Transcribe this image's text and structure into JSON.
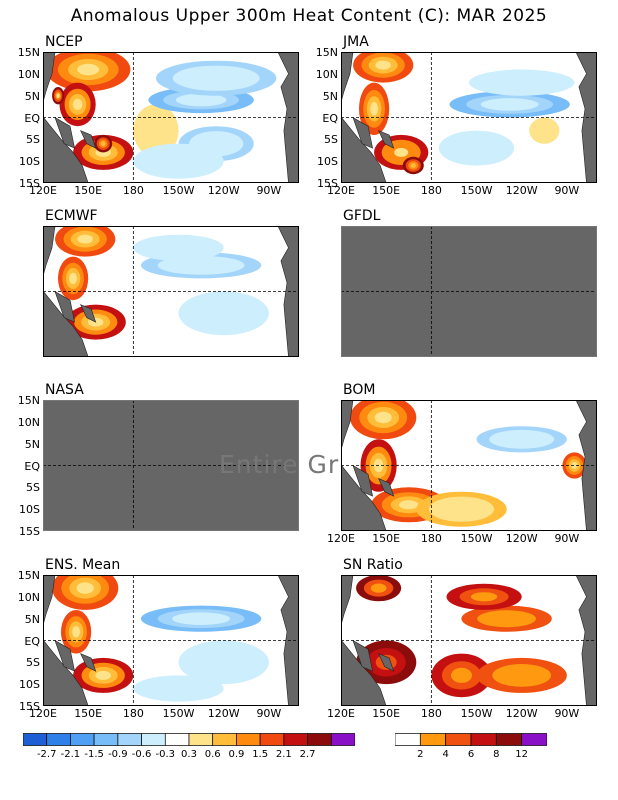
{
  "title": "Anomalous Upper 300m Heat Content (C): MAR 2025",
  "y_ticks": [
    "15N",
    "10N",
    "5N",
    "EQ",
    "5S",
    "10S",
    "15S"
  ],
  "x_ticks": [
    "120E",
    "150E",
    "180",
    "150W",
    "120W",
    "90W"
  ],
  "panels": [
    {
      "id": "ncep",
      "label": "NCEP",
      "status": "data"
    },
    {
      "id": "jma",
      "label": "JMA",
      "status": "data"
    },
    {
      "id": "ecmwf",
      "label": "ECMWF",
      "status": "data"
    },
    {
      "id": "gfdl",
      "label": "GFDL",
      "status": "missing"
    },
    {
      "id": "nasa",
      "label": "NASA",
      "status": "missing",
      "overlay_text": "Entire Gr"
    },
    {
      "id": "bom",
      "label": "BOM",
      "status": "data"
    },
    {
      "id": "ens",
      "label": "ENS. Mean",
      "status": "data"
    },
    {
      "id": "sn",
      "label": "SN Ratio",
      "status": "data"
    }
  ],
  "colorbar_anomaly": {
    "colors": [
      "#1e5fd6",
      "#2e7fe8",
      "#4f9ff5",
      "#78bdf7",
      "#a3d5fb",
      "#cdeefd",
      "#ffffff",
      "#ffe38a",
      "#ffbd3a",
      "#ff8a10",
      "#f04a10",
      "#c41010",
      "#8c0c0c",
      "#8a10c8"
    ],
    "labels": [
      "-2.7",
      "-2.1",
      "-1.5",
      "-0.9",
      "-0.6",
      "-0.3",
      "0.3",
      "0.6",
      "0.9",
      "1.5",
      "2.1",
      "2.7"
    ]
  },
  "colorbar_sn": {
    "colors": [
      "#ffffff",
      "#ff9a10",
      "#f05010",
      "#c41010",
      "#8c0c0c",
      "#8a10c8"
    ],
    "labels": [
      "2",
      "4",
      "6",
      "8",
      "12"
    ]
  },
  "chart_data": {
    "type": "heatmap",
    "title": "Anomalous Upper 300m Heat Content (C): MAR 2025",
    "x_axis": {
      "ticks": [
        "120E",
        "150E",
        "180",
        "150W",
        "120W",
        "90W"
      ],
      "range_deg_east": [
        120,
        290
      ]
    },
    "y_axis": {
      "ticks": [
        "15N",
        "10N",
        "5N",
        "EQ",
        "5S",
        "10S",
        "15S"
      ],
      "range_deg": [
        -15,
        15
      ]
    },
    "grid": "dashed lines at 180 and EQ",
    "land_color": "#666666",
    "anomaly_levels": [
      -2.7,
      -2.1,
      -1.5,
      -0.9,
      -0.6,
      -0.3,
      0.3,
      0.6,
      0.9,
      1.5,
      2.1,
      2.7
    ],
    "sn_levels": [
      2,
      4,
      6,
      8,
      12
    ],
    "fields": [
      {
        "panel": "NCEP",
        "features": [
          {
            "lon": 150,
            "lat": 11,
            "value": 1.6,
            "sx": 28,
            "sy": 5
          },
          {
            "lon": 143,
            "lat": 3,
            "value": 2.2,
            "sx": 12,
            "sy": 5
          },
          {
            "lon": 160,
            "lat": -8,
            "value": 2.2,
            "sx": 20,
            "sy": 4
          },
          {
            "lon": 130,
            "lat": 5,
            "value": 2.9,
            "sx": 4,
            "sy": 2
          },
          {
            "lon": 160,
            "lat": -6,
            "value": 3.0,
            "sx": 6,
            "sy": 2
          },
          {
            "lon": 195,
            "lat": -3,
            "value": 0.5,
            "sx": 15,
            "sy": 6
          },
          {
            "lon": 225,
            "lat": 4,
            "value": -1.2,
            "sx": 35,
            "sy": 3
          },
          {
            "lon": 235,
            "lat": 9,
            "value": -0.7,
            "sx": 40,
            "sy": 4
          },
          {
            "lon": 235,
            "lat": -6,
            "value": -0.8,
            "sx": 25,
            "sy": 4
          },
          {
            "lon": 210,
            "lat": -10,
            "value": -0.5,
            "sx": 30,
            "sy": 4
          }
        ]
      },
      {
        "panel": "JMA",
        "features": [
          {
            "lon": 148,
            "lat": 12,
            "value": 1.8,
            "sx": 20,
            "sy": 4
          },
          {
            "lon": 142,
            "lat": 2,
            "value": 1.8,
            "sx": 10,
            "sy": 6
          },
          {
            "lon": 160,
            "lat": -8,
            "value": 2.3,
            "sx": 18,
            "sy": 4
          },
          {
            "lon": 168,
            "lat": -11,
            "value": 3.0,
            "sx": 7,
            "sy": 2
          },
          {
            "lon": 232,
            "lat": 3,
            "value": -1.1,
            "sx": 40,
            "sy": 3
          },
          {
            "lon": 240,
            "lat": 8,
            "value": -0.6,
            "sx": 35,
            "sy": 3
          },
          {
            "lon": 210,
            "lat": -7,
            "value": -0.6,
            "sx": 25,
            "sy": 4
          },
          {
            "lon": 255,
            "lat": -3,
            "value": 0.5,
            "sx": 10,
            "sy": 3
          }
        ]
      },
      {
        "panel": "ECMWF",
        "features": [
          {
            "lon": 148,
            "lat": 12,
            "value": 1.5,
            "sx": 20,
            "sy": 4
          },
          {
            "lon": 140,
            "lat": 3,
            "value": 1.6,
            "sx": 10,
            "sy": 5
          },
          {
            "lon": 155,
            "lat": -7,
            "value": 2.2,
            "sx": 20,
            "sy": 4
          },
          {
            "lon": 225,
            "lat": 6,
            "value": -0.9,
            "sx": 40,
            "sy": 3
          },
          {
            "lon": 210,
            "lat": 10,
            "value": -0.5,
            "sx": 30,
            "sy": 3
          },
          {
            "lon": 240,
            "lat": -5,
            "value": -0.4,
            "sx": 30,
            "sy": 5
          }
        ]
      },
      {
        "panel": "BOM",
        "features": [
          {
            "lon": 148,
            "lat": 11,
            "value": 1.8,
            "sx": 22,
            "sy": 5
          },
          {
            "lon": 145,
            "lat": 0,
            "value": 2.2,
            "sx": 12,
            "sy": 6
          },
          {
            "lon": 165,
            "lat": -9,
            "value": 1.8,
            "sx": 25,
            "sy": 4
          },
          {
            "lon": 240,
            "lat": 6,
            "value": -0.9,
            "sx": 30,
            "sy": 3
          },
          {
            "lon": 275,
            "lat": 0,
            "value": 1.6,
            "sx": 8,
            "sy": 3
          },
          {
            "lon": 200,
            "lat": -10,
            "value": 0.6,
            "sx": 30,
            "sy": 4
          }
        ]
      },
      {
        "panel": "ENS. Mean",
        "features": [
          {
            "lon": 148,
            "lat": 12,
            "value": 1.6,
            "sx": 22,
            "sy": 5
          },
          {
            "lon": 142,
            "lat": 2,
            "value": 1.7,
            "sx": 10,
            "sy": 5
          },
          {
            "lon": 160,
            "lat": -8,
            "value": 2.2,
            "sx": 20,
            "sy": 4
          },
          {
            "lon": 225,
            "lat": 5,
            "value": -1.0,
            "sx": 40,
            "sy": 3
          },
          {
            "lon": 240,
            "lat": -5,
            "value": -0.6,
            "sx": 30,
            "sy": 5
          },
          {
            "lon": 210,
            "lat": -11,
            "value": -0.5,
            "sx": 30,
            "sy": 3
          }
        ]
      },
      {
        "panel": "SN Ratio",
        "features": [
          {
            "lon": 145,
            "lat": 12,
            "value": 8,
            "sx": 15,
            "sy": 3
          },
          {
            "lon": 150,
            "lat": -5,
            "value": 9,
            "sx": 20,
            "sy": 5
          },
          {
            "lon": 200,
            "lat": -8,
            "value": 6,
            "sx": 20,
            "sy": 5
          },
          {
            "lon": 230,
            "lat": 5,
            "value": 5,
            "sx": 30,
            "sy": 3
          },
          {
            "lon": 215,
            "lat": 10,
            "value": 6,
            "sx": 25,
            "sy": 3
          },
          {
            "lon": 240,
            "lat": -8,
            "value": 4,
            "sx": 30,
            "sy": 4
          }
        ]
      }
    ]
  }
}
